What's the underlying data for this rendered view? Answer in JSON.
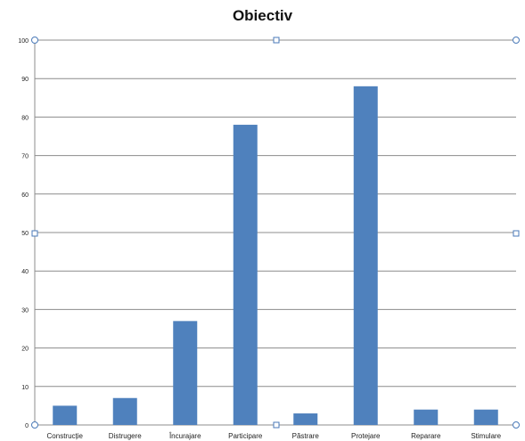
{
  "chart_data": {
    "type": "bar",
    "title": "Obiectiv",
    "categories": [
      "Construcție",
      "Distrugere",
      "Încurajare",
      "Participare",
      "Păstrare",
      "Protejare",
      "Reparare",
      "Stimulare"
    ],
    "values": [
      5,
      7,
      27,
      78,
      3,
      88,
      4,
      4
    ],
    "ylim": [
      0,
      100
    ],
    "yticks": [
      0,
      10,
      20,
      30,
      40,
      50,
      60,
      70,
      80,
      90,
      100
    ],
    "grid": true,
    "legend": "none",
    "bar_color": "#4f81bd",
    "grid_color": "#8c8c8c",
    "xlabel": "",
    "ylabel": ""
  }
}
